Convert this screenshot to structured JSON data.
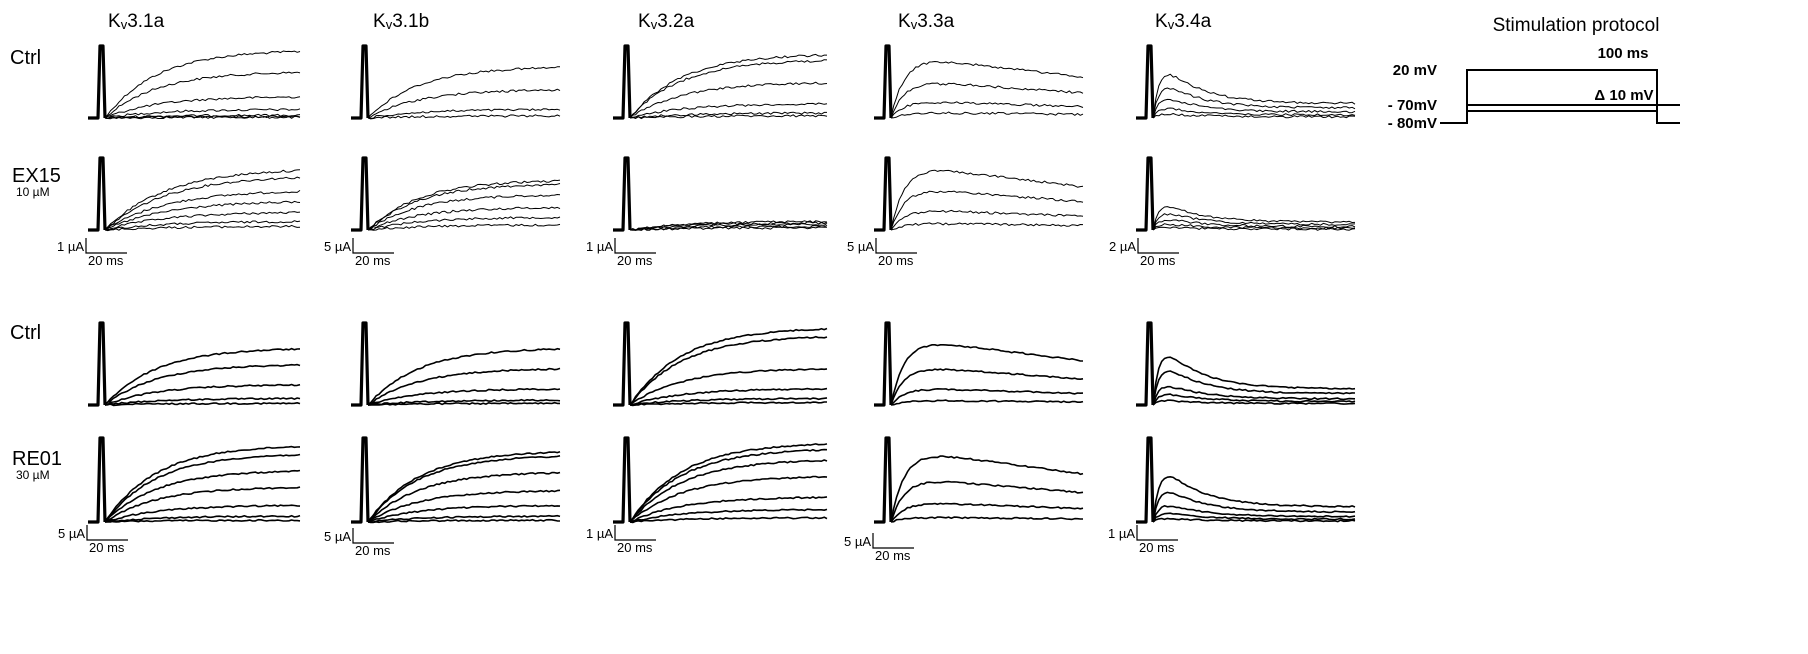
{
  "channels": [
    {
      "name": "Kv3.1a",
      "prefix": "K",
      "sub": "v",
      "suffix": "3.1a"
    },
    {
      "name": "Kv3.1b",
      "prefix": "K",
      "sub": "v",
      "suffix": "3.1b"
    },
    {
      "name": "Kv3.2a",
      "prefix": "K",
      "sub": "v",
      "suffix": "3.2a"
    },
    {
      "name": "Kv3.3a",
      "prefix": "K",
      "sub": "v",
      "suffix": "3.3a"
    },
    {
      "name": "Kv3.4a",
      "prefix": "K",
      "sub": "v",
      "suffix": "3.4a"
    }
  ],
  "groups": [
    {
      "control_label": "Ctrl",
      "drug_label": "EX15",
      "drug_conc": "10 µM",
      "scale_bars": [
        {
          "current": "1 µA",
          "time": "20 ms"
        },
        {
          "current": "5 µA",
          "time": "20 ms"
        },
        {
          "current": "1 µA",
          "time": "20 ms"
        },
        {
          "current": "5 µA",
          "time": "20 ms"
        },
        {
          "current": "2 µA",
          "time": "20 ms"
        }
      ]
    },
    {
      "control_label": "Ctrl",
      "drug_label": "RE01",
      "drug_conc": "30 µM",
      "scale_bars": [
        {
          "current": "5 µA",
          "time": "20 ms"
        },
        {
          "current": "5 µA",
          "time": "20 ms"
        },
        {
          "current": "1 µA",
          "time": "20 ms"
        },
        {
          "current": "5 µA",
          "time": "20 ms"
        },
        {
          "current": "1 µA",
          "time": "20 ms"
        }
      ]
    }
  ],
  "protocol": {
    "title": "Stimulation protocol",
    "step_level": "20 mV",
    "duration": "100 ms",
    "holding": "- 70mV",
    "baseline": "- 80mV",
    "increment": "Δ 10 mV"
  }
}
